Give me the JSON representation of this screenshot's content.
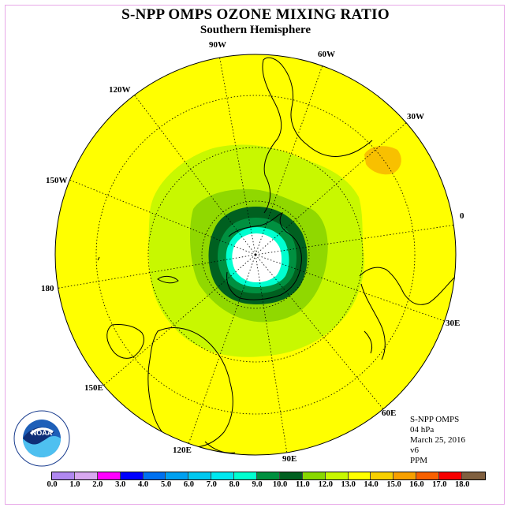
{
  "header": {
    "title": "S-NPP OMPS OZONE MIXING RATIO",
    "subtitle": "Southern Hemisphere"
  },
  "map": {
    "projection": "polar-stereographic-south",
    "ocean_land_color": "#ffff00",
    "longitude_labels": [
      "90W",
      "60W",
      "30W",
      "0",
      "30E",
      "60E",
      "90E",
      "120E",
      "150E",
      "180",
      "150W",
      "120W"
    ]
  },
  "info": {
    "instrument": "S-NPP OMPS",
    "level": "04 hPa",
    "date": "March 25, 2016",
    "version": "v6",
    "units": "PPM"
  },
  "logo": {
    "text": "NOAA",
    "ring_text": "NATIONAL OCEANIC AND ATMOSPHERIC ADMINISTRATION",
    "ring_text_bottom": "U.S. DEPARTMENT OF COMMERCE"
  },
  "colorbar": {
    "colors": [
      "#b088f0",
      "#d8a8f0",
      "#ff00ff",
      "#0000ff",
      "#0070f0",
      "#00a0f0",
      "#00c8f0",
      "#00e8f0",
      "#00ffd0",
      "#009040",
      "#006020",
      "#88d800",
      "#c8f800",
      "#ffff00",
      "#f8d000",
      "#f8a000",
      "#f86000",
      "#f80000",
      "#806040"
    ],
    "tick_labels": [
      "0.0",
      "1.0",
      "2.0",
      "3.0",
      "4.0",
      "5.0",
      "6.0",
      "7.0",
      "8.0",
      "9.0",
      "10.0",
      "11.0",
      "12.0",
      "13.0",
      "14.0",
      "15.0",
      "16.0",
      "17.0",
      "18.0"
    ]
  }
}
